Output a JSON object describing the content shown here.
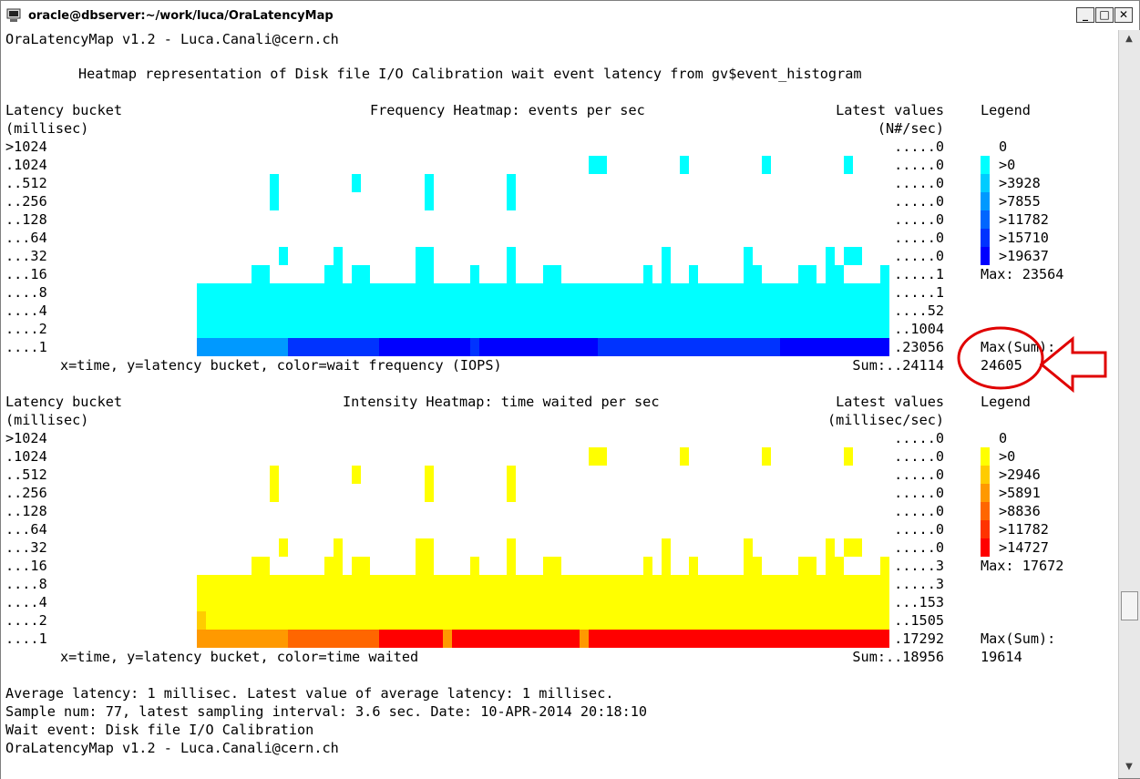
{
  "window": {
    "title": "oracle@dbserver:~/work/luca/OraLatencyMap",
    "minimize": "_",
    "maximize": "□",
    "close": "✕"
  },
  "header": {
    "app_line": "OraLatencyMap v1.2 - Luca.Canali@cern.ch",
    "subtitle": "Heatmap representation of Disk file I/O Calibration wait event latency from gv$event_histogram"
  },
  "colors": {
    "freq": [
      "#ffffff",
      "#00ffff",
      "#00ccff",
      "#0099ff",
      "#0066ff",
      "#0033ff",
      "#0000ff"
    ],
    "intens": [
      "#ffffff",
      "#ffff00",
      "#ffcc00",
      "#ff9900",
      "#ff6600",
      "#ff3300",
      "#ff0000"
    ],
    "annotation": "#e00000"
  },
  "frequency": {
    "col_label1": "Latency bucket",
    "col_label2": "(millisec)",
    "title": "Frequency Heatmap: events per sec",
    "latest_label1": "Latest values",
    "latest_label2": "(N#/sec)",
    "legend_title": "Legend",
    "buckets": [
      ">1024",
      ".1024",
      "..512",
      "..256",
      "..128",
      "...64",
      "...32",
      "...16",
      "....8",
      "....4",
      "....2",
      "....1"
    ],
    "latest": [
      ".....0",
      ".....0",
      ".....0",
      ".....0",
      ".....0",
      ".....0",
      ".....0",
      ".....1",
      ".....1",
      "....52",
      "..1004",
      ".23056"
    ],
    "legend": [
      "0",
      ">0",
      ">3928",
      ">7855",
      ">11782",
      ">15710",
      ">19637"
    ],
    "max": "Max: 23564",
    "max_sum_label": "Max(Sum):",
    "max_sum_value": "24605",
    "axis_caption": "x=time, y=latency bucket, color=wait frequency (IOPS)",
    "sum": "Sum:..24114"
  },
  "intensity": {
    "col_label1": "Latency bucket",
    "col_label2": "(millisec)",
    "title": "Intensity Heatmap: time waited per sec",
    "latest_label1": "Latest values",
    "latest_label2": "(millisec/sec)",
    "legend_title": "Legend",
    "buckets": [
      ">1024",
      ".1024",
      "..512",
      "..256",
      "..128",
      "...64",
      "...32",
      "...16",
      "....8",
      "....4",
      "....2",
      "....1"
    ],
    "latest": [
      ".....0",
      ".....0",
      ".....0",
      ".....0",
      ".....0",
      ".....0",
      ".....0",
      ".....3",
      ".....3",
      "...153",
      "..1505",
      ".17292"
    ],
    "legend": [
      "0",
      ">0",
      ">2946",
      ">5891",
      ">8836",
      ">11782",
      ">14727"
    ],
    "max": "Max: 17672",
    "max_sum_label": "Max(Sum):",
    "max_sum_value": "19614",
    "axis_caption": "x=time, y=latency bucket, color=time waited",
    "sum": "Sum:..18956"
  },
  "footer": {
    "line1": "Average latency: 1 millisec. Latest value of average latency: 1 millisec.",
    "line2": "Sample num: 77, latest sampling interval: 3.6 sec. Date: 10-APR-2014 20:18:10",
    "line3": "Wait event: Disk file I/O Calibration",
    "line4": "OraLatencyMap v1.2 - Luca.Canali@cern.ch"
  },
  "heatmap_grid": {
    "columns": 76,
    "row_order": [
      ">1024",
      ".1024",
      "..512",
      "..256",
      "..128",
      "...64",
      "...32",
      "...16",
      "....8",
      "....4",
      "....2",
      "....1"
    ],
    "frequency_levels": [
      "0000000000000000000000000000000000000000000000000000000000000000000000000000",
      "0000000000000000000000000000000000000000000110000000010000000010000000010000",
      "0000000010000000010000000100000000100000000000000000000000000000000000000000",
      "0000000010000000000000000100000000100000000000000000000000000000000000000000",
      "0000000000000000000000000000000000000000000000000000000000000000000000000000",
      "0000000000000000000000000000000000000000000000000000000000000000000000000000",
      "0000000001000001000000001100000000100000000000000001000000001000000001011000",
      "0000001100000011011000001100001000100011000000000101001000001100001101100001",
      "1111111111111111111111111111111111111111111111111111111111111111111111111111",
      "1111111111111111111111111111111111111111111111111111111111111111111111111111",
      "1111111111111111111111111111111111111111111111111111111111111111111111111111",
      "3333333333555555555566666666665666666666666655555555555555555555666666666666"
    ],
    "intensity_levels": [
      "0000000000000000000000000000000000000000000000000000000000000000000000000000",
      "0000000000000000000000000000000000000000000110000000010000000010000000010000",
      "0000000010000000010000000100000000100000000000000000000000000000000000000000",
      "0000000010000000000000000100000000100000000000000000000000000000000000000000",
      "0000000000000000000000000000000000000000000000000000000000000000000000000000",
      "0000000000000000000000000000000000000000000000000000000000000000000000000000",
      "0000000001000001000000001100000000100000000000000001000000001000000001011000",
      "0000001100000011011000001100001000100011000000000101001000001100001101100001",
      "1111111111111111111111111111111111111111111111111111111111111111111111111111",
      "1111111111111111111111111111111111111111111111111111111111111111111111111111",
      "2111111111111111111111111111111111111111111111111111111111111111111111111111",
      "3333333333444444444466666663666666666666663666666666666666666666666666666666"
    ]
  }
}
